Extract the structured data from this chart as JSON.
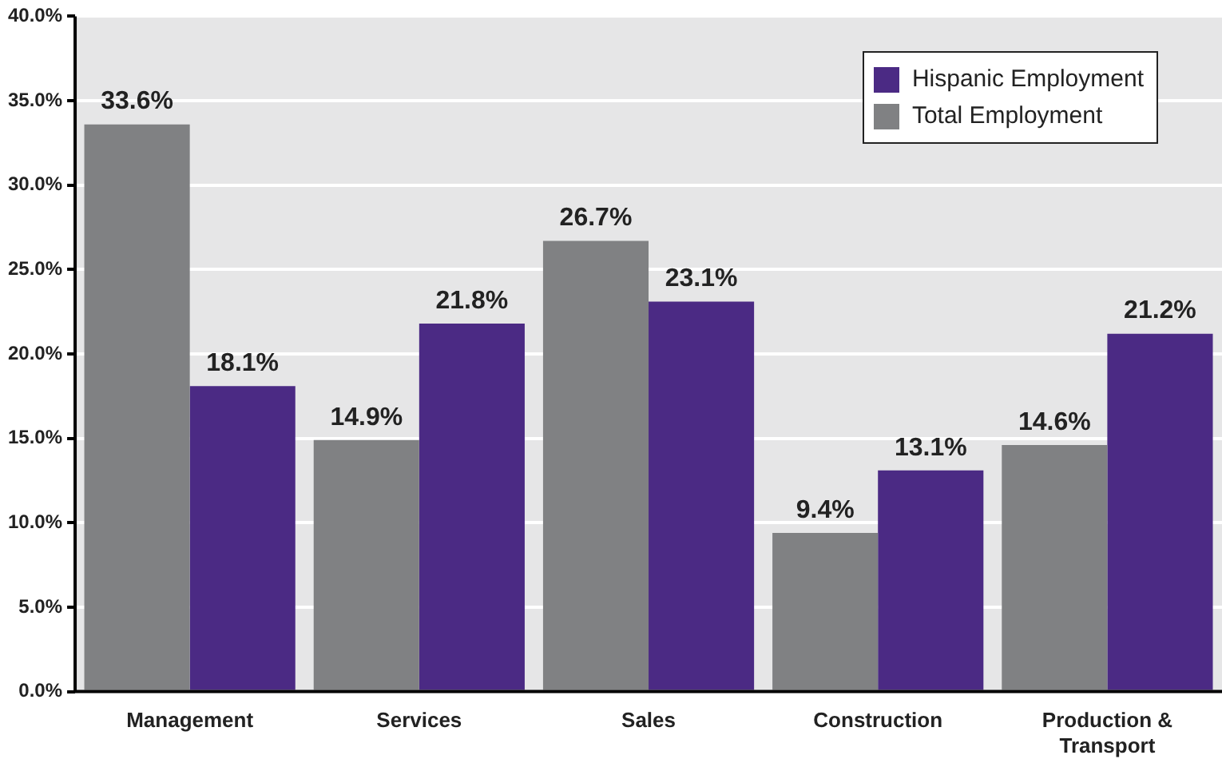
{
  "chart_data": {
    "type": "bar",
    "categories": [
      "Management",
      "Services",
      "Sales",
      "Construction",
      "Production & Transport"
    ],
    "series": [
      {
        "name": "Total Employment",
        "color": "#808183",
        "values": [
          33.6,
          14.9,
          26.7,
          9.4,
          14.6
        ],
        "value_labels": [
          "33.6%",
          "14.9%",
          "26.7%",
          "9.4%",
          "14.6%"
        ]
      },
      {
        "name": "Hispanic Employment",
        "color": "#4b2a84",
        "values": [
          18.1,
          21.8,
          23.1,
          13.1,
          21.2
        ],
        "value_labels": [
          "18.1%",
          "21.8%",
          "23.1%",
          "13.1%",
          "21.2%"
        ]
      }
    ],
    "ylim": [
      0,
      40
    ],
    "yticks": [
      {
        "value": 0,
        "label": "0.0%"
      },
      {
        "value": 5,
        "label": "5.0%"
      },
      {
        "value": 10,
        "label": "10.0%"
      },
      {
        "value": 15,
        "label": "15.0%"
      },
      {
        "value": 20,
        "label": "20.0%"
      },
      {
        "value": 25,
        "label": "25.0%"
      },
      {
        "value": 30,
        "label": "30.0%"
      },
      {
        "value": 35,
        "label": "35.0%"
      },
      {
        "value": 40,
        "label": "40.0%"
      }
    ],
    "grid": "y",
    "legend": "top right"
  }
}
